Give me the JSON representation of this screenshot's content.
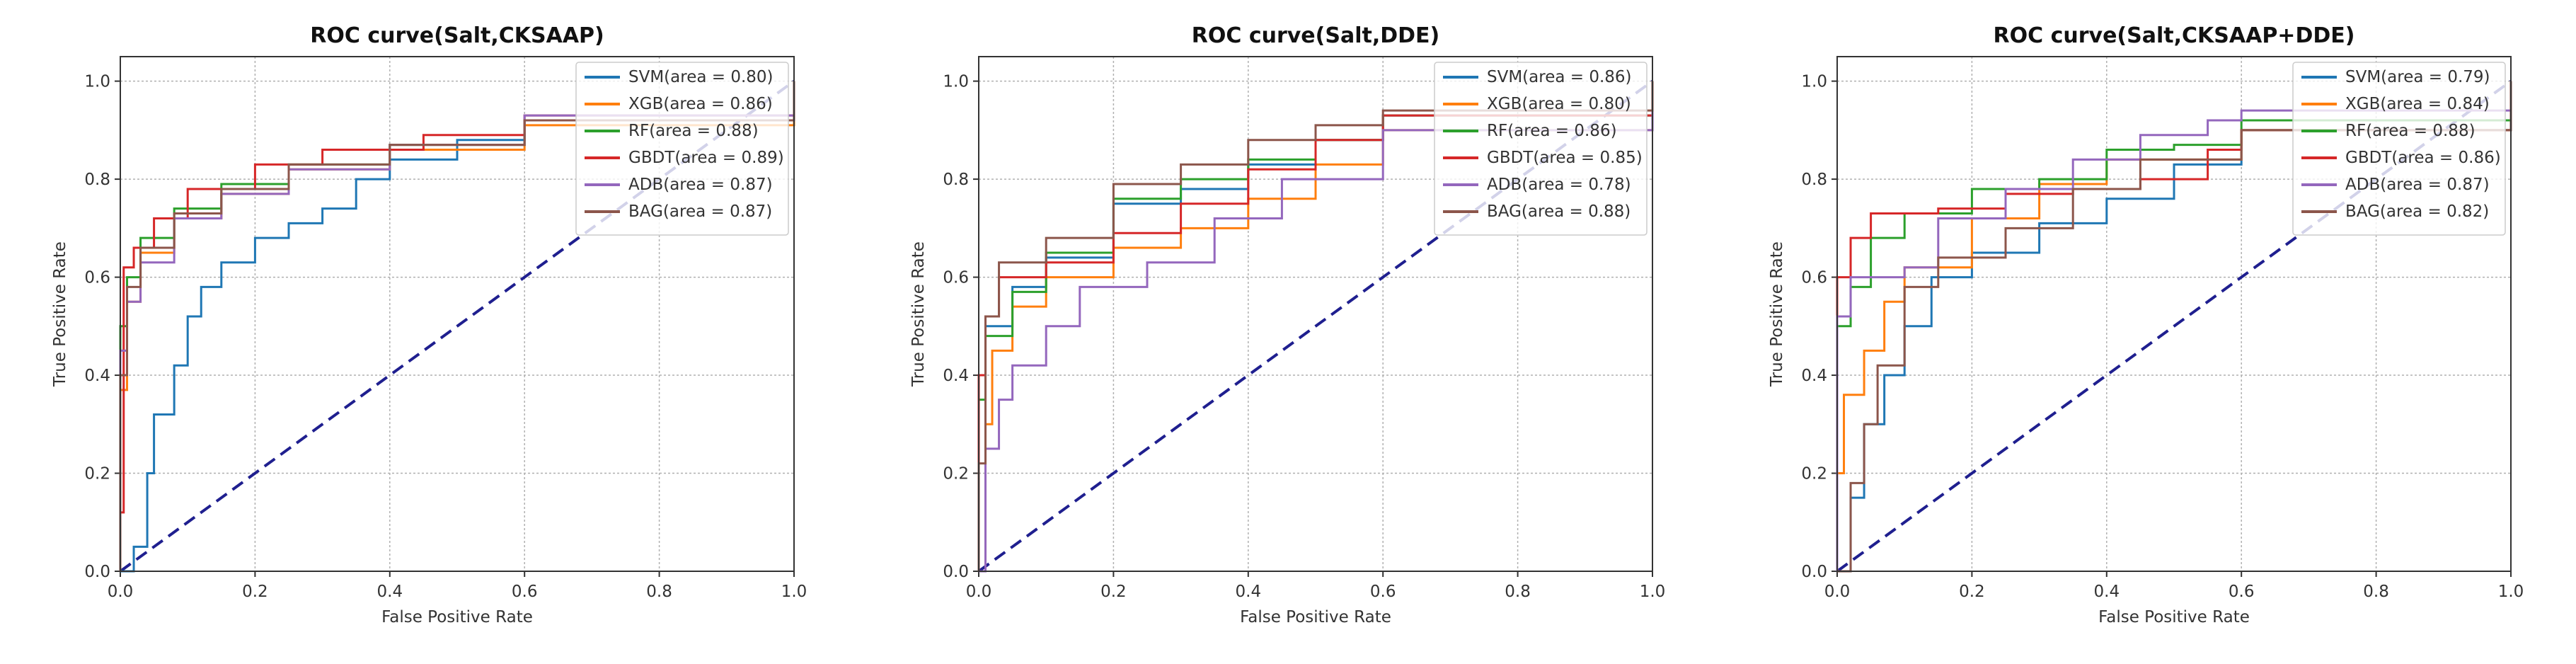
{
  "chart_data": [
    {
      "type": "line",
      "title": "ROC curve(Salt,CKSAAP)",
      "xlabel": "False Positive Rate",
      "ylabel": "True Positive Rate",
      "xlim": [
        0.0,
        1.0
      ],
      "ylim": [
        0.0,
        1.05
      ],
      "xticks": [
        "0.0",
        "0.2",
        "0.4",
        "0.6",
        "0.8",
        "1.0"
      ],
      "yticks": [
        "0.0",
        "0.2",
        "0.4",
        "0.6",
        "0.8",
        "1.0"
      ],
      "grid": true,
      "legend_position": "upper right",
      "reference_line": {
        "style": "dashed",
        "color": "#1f1f8f",
        "from": [
          0,
          0
        ],
        "to": [
          1,
          1
        ]
      },
      "curve_points_are_approximate": true,
      "series": [
        {
          "name": "SVM",
          "auc": 0.8,
          "label": "SVM(area = 0.80)",
          "color": "#1f77b4",
          "points": [
            [
              0,
              0
            ],
            [
              0.02,
              0.05
            ],
            [
              0.04,
              0.2
            ],
            [
              0.05,
              0.32
            ],
            [
              0.08,
              0.42
            ],
            [
              0.1,
              0.52
            ],
            [
              0.12,
              0.58
            ],
            [
              0.15,
              0.63
            ],
            [
              0.2,
              0.68
            ],
            [
              0.25,
              0.71
            ],
            [
              0.3,
              0.74
            ],
            [
              0.35,
              0.8
            ],
            [
              0.4,
              0.84
            ],
            [
              0.5,
              0.88
            ],
            [
              0.6,
              0.92
            ],
            [
              1,
              1
            ]
          ]
        },
        {
          "name": "XGB",
          "auc": 0.86,
          "label": "XGB(area = 0.86)",
          "color": "#ff7f0e",
          "points": [
            [
              0,
              0
            ],
            [
              0,
              0.37
            ],
            [
              0.01,
              0.55
            ],
            [
              0.03,
              0.65
            ],
            [
              0.08,
              0.72
            ],
            [
              0.15,
              0.77
            ],
            [
              0.25,
              0.82
            ],
            [
              0.4,
              0.86
            ],
            [
              0.6,
              0.91
            ],
            [
              1,
              1
            ]
          ]
        },
        {
          "name": "RF",
          "auc": 0.88,
          "label": "RF(area = 0.88)",
          "color": "#2ca02c",
          "points": [
            [
              0,
              0
            ],
            [
              0,
              0.5
            ],
            [
              0.01,
              0.6
            ],
            [
              0.03,
              0.68
            ],
            [
              0.08,
              0.74
            ],
            [
              0.15,
              0.79
            ],
            [
              0.25,
              0.83
            ],
            [
              0.4,
              0.87
            ],
            [
              0.6,
              0.92
            ],
            [
              1,
              1
            ]
          ]
        },
        {
          "name": "GBDT",
          "auc": 0.89,
          "label": "GBDT(area = 0.89)",
          "color": "#d62728",
          "points": [
            [
              0,
              0
            ],
            [
              0,
              0.12
            ],
            [
              0.005,
              0.62
            ],
            [
              0.02,
              0.66
            ],
            [
              0.05,
              0.72
            ],
            [
              0.1,
              0.78
            ],
            [
              0.2,
              0.83
            ],
            [
              0.3,
              0.86
            ],
            [
              0.45,
              0.89
            ],
            [
              0.6,
              0.93
            ],
            [
              1,
              1
            ]
          ]
        },
        {
          "name": "ADB",
          "auc": 0.87,
          "label": "ADB(area = 0.87)",
          "color": "#9467bd",
          "points": [
            [
              0,
              0
            ],
            [
              0,
              0.45
            ],
            [
              0.01,
              0.55
            ],
            [
              0.03,
              0.63
            ],
            [
              0.08,
              0.72
            ],
            [
              0.15,
              0.77
            ],
            [
              0.25,
              0.82
            ],
            [
              0.4,
              0.87
            ],
            [
              0.6,
              0.93
            ],
            [
              1,
              1
            ]
          ]
        },
        {
          "name": "BAG",
          "auc": 0.87,
          "label": "BAG(area = 0.87)",
          "color": "#8c564b",
          "points": [
            [
              0,
              0
            ],
            [
              0,
              0.4
            ],
            [
              0.01,
              0.58
            ],
            [
              0.03,
              0.66
            ],
            [
              0.08,
              0.73
            ],
            [
              0.15,
              0.78
            ],
            [
              0.25,
              0.83
            ],
            [
              0.4,
              0.87
            ],
            [
              0.6,
              0.92
            ],
            [
              1,
              1
            ]
          ]
        }
      ]
    },
    {
      "type": "line",
      "title": "ROC curve(Salt,DDE)",
      "xlabel": "False Positive Rate",
      "ylabel": "True Positive Rate",
      "xlim": [
        0.0,
        1.0
      ],
      "ylim": [
        0.0,
        1.05
      ],
      "xticks": [
        "0.0",
        "0.2",
        "0.4",
        "0.6",
        "0.8",
        "1.0"
      ],
      "yticks": [
        "0.0",
        "0.2",
        "0.4",
        "0.6",
        "0.8",
        "1.0"
      ],
      "grid": true,
      "legend_position": "upper right",
      "reference_line": {
        "style": "dashed",
        "color": "#1f1f8f",
        "from": [
          0,
          0
        ],
        "to": [
          1,
          1
        ]
      },
      "curve_points_are_approximate": true,
      "series": [
        {
          "name": "SVM",
          "auc": 0.86,
          "label": "SVM(area = 0.86)",
          "color": "#1f77b4",
          "points": [
            [
              0,
              0
            ],
            [
              0,
              0.4
            ],
            [
              0.01,
              0.5
            ],
            [
              0.05,
              0.58
            ],
            [
              0.1,
              0.64
            ],
            [
              0.2,
              0.75
            ],
            [
              0.3,
              0.78
            ],
            [
              0.4,
              0.83
            ],
            [
              0.5,
              0.88
            ],
            [
              0.6,
              0.93
            ],
            [
              1,
              1
            ]
          ]
        },
        {
          "name": "XGB",
          "auc": 0.8,
          "label": "XGB(area = 0.80)",
          "color": "#ff7f0e",
          "points": [
            [
              0,
              0
            ],
            [
              0.01,
              0.3
            ],
            [
              0.02,
              0.45
            ],
            [
              0.05,
              0.54
            ],
            [
              0.1,
              0.6
            ],
            [
              0.2,
              0.66
            ],
            [
              0.3,
              0.7
            ],
            [
              0.4,
              0.76
            ],
            [
              0.5,
              0.83
            ],
            [
              0.6,
              0.9
            ],
            [
              1,
              1
            ]
          ]
        },
        {
          "name": "RF",
          "auc": 0.86,
          "label": "RF(area = 0.86)",
          "color": "#2ca02c",
          "points": [
            [
              0,
              0
            ],
            [
              0,
              0.35
            ],
            [
              0.01,
              0.48
            ],
            [
              0.05,
              0.57
            ],
            [
              0.1,
              0.65
            ],
            [
              0.2,
              0.76
            ],
            [
              0.3,
              0.8
            ],
            [
              0.4,
              0.84
            ],
            [
              0.5,
              0.88
            ],
            [
              0.6,
              0.93
            ],
            [
              1,
              1
            ]
          ]
        },
        {
          "name": "GBDT",
          "auc": 0.85,
          "label": "GBDT(area = 0.85)",
          "color": "#d62728",
          "points": [
            [
              0,
              0
            ],
            [
              0,
              0.4
            ],
            [
              0.01,
              0.52
            ],
            [
              0.03,
              0.6
            ],
            [
              0.1,
              0.63
            ],
            [
              0.2,
              0.69
            ],
            [
              0.3,
              0.75
            ],
            [
              0.4,
              0.82
            ],
            [
              0.5,
              0.88
            ],
            [
              0.6,
              0.93
            ],
            [
              1,
              1
            ]
          ]
        },
        {
          "name": "ADB",
          "auc": 0.78,
          "label": "ADB(area = 0.78)",
          "color": "#9467bd",
          "points": [
            [
              0,
              0
            ],
            [
              0.01,
              0.25
            ],
            [
              0.03,
              0.35
            ],
            [
              0.05,
              0.42
            ],
            [
              0.1,
              0.5
            ],
            [
              0.15,
              0.58
            ],
            [
              0.25,
              0.63
            ],
            [
              0.35,
              0.72
            ],
            [
              0.45,
              0.8
            ],
            [
              0.6,
              0.9
            ],
            [
              1,
              1
            ]
          ]
        },
        {
          "name": "BAG",
          "auc": 0.88,
          "label": "BAG(area = 0.88)",
          "color": "#8c564b",
          "points": [
            [
              0,
              0
            ],
            [
              0,
              0.22
            ],
            [
              0.01,
              0.52
            ],
            [
              0.03,
              0.63
            ],
            [
              0.1,
              0.68
            ],
            [
              0.2,
              0.79
            ],
            [
              0.3,
              0.83
            ],
            [
              0.4,
              0.88
            ],
            [
              0.5,
              0.91
            ],
            [
              0.6,
              0.94
            ],
            [
              1,
              1
            ]
          ]
        }
      ]
    },
    {
      "type": "line",
      "title": "ROC curve(Salt,CKSAAP+DDE)",
      "xlabel": "False Positive Rate",
      "ylabel": "True Positive Rate",
      "xlim": [
        0.0,
        1.0
      ],
      "ylim": [
        0.0,
        1.05
      ],
      "xticks": [
        "0.0",
        "0.2",
        "0.4",
        "0.6",
        "0.8",
        "1.0"
      ],
      "yticks": [
        "0.0",
        "0.2",
        "0.4",
        "0.6",
        "0.8",
        "1.0"
      ],
      "grid": true,
      "legend_position": "upper right",
      "reference_line": {
        "style": "dashed",
        "color": "#1f1f8f",
        "from": [
          0,
          0
        ],
        "to": [
          1,
          1
        ]
      },
      "curve_points_are_approximate": true,
      "series": [
        {
          "name": "SVM",
          "auc": 0.79,
          "label": "SVM(area = 0.79)",
          "color": "#1f77b4",
          "points": [
            [
              0,
              0
            ],
            [
              0.02,
              0.15
            ],
            [
              0.04,
              0.3
            ],
            [
              0.07,
              0.4
            ],
            [
              0.1,
              0.5
            ],
            [
              0.14,
              0.6
            ],
            [
              0.2,
              0.65
            ],
            [
              0.3,
              0.71
            ],
            [
              0.4,
              0.76
            ],
            [
              0.5,
              0.83
            ],
            [
              0.6,
              0.9
            ],
            [
              1,
              1
            ]
          ]
        },
        {
          "name": "XGB",
          "auc": 0.84,
          "label": "XGB(area = 0.84)",
          "color": "#ff7f0e",
          "points": [
            [
              0,
              0
            ],
            [
              0,
              0.2
            ],
            [
              0.01,
              0.36
            ],
            [
              0.04,
              0.45
            ],
            [
              0.07,
              0.55
            ],
            [
              0.1,
              0.62
            ],
            [
              0.2,
              0.72
            ],
            [
              0.3,
              0.79
            ],
            [
              0.4,
              0.84
            ],
            [
              0.6,
              0.9
            ],
            [
              1,
              1
            ]
          ]
        },
        {
          "name": "RF",
          "auc": 0.88,
          "label": "RF(area = 0.88)",
          "color": "#2ca02c",
          "points": [
            [
              0,
              0
            ],
            [
              0,
              0.5
            ],
            [
              0.02,
              0.58
            ],
            [
              0.05,
              0.68
            ],
            [
              0.1,
              0.73
            ],
            [
              0.2,
              0.78
            ],
            [
              0.3,
              0.8
            ],
            [
              0.4,
              0.86
            ],
            [
              0.5,
              0.87
            ],
            [
              0.6,
              0.92
            ],
            [
              1,
              1
            ]
          ]
        },
        {
          "name": "GBDT",
          "auc": 0.86,
          "label": "GBDT(area = 0.86)",
          "color": "#d62728",
          "points": [
            [
              0,
              0
            ],
            [
              0,
              0.6
            ],
            [
              0.02,
              0.68
            ],
            [
              0.05,
              0.73
            ],
            [
              0.15,
              0.74
            ],
            [
              0.25,
              0.77
            ],
            [
              0.35,
              0.78
            ],
            [
              0.45,
              0.8
            ],
            [
              0.55,
              0.86
            ],
            [
              0.6,
              0.9
            ],
            [
              1,
              1
            ]
          ]
        },
        {
          "name": "ADB",
          "auc": 0.87,
          "label": "ADB(area = 0.87)",
          "color": "#9467bd",
          "points": [
            [
              0,
              0
            ],
            [
              0,
              0.52
            ],
            [
              0.02,
              0.6
            ],
            [
              0.1,
              0.62
            ],
            [
              0.15,
              0.72
            ],
            [
              0.25,
              0.78
            ],
            [
              0.35,
              0.84
            ],
            [
              0.45,
              0.89
            ],
            [
              0.55,
              0.92
            ],
            [
              0.6,
              0.94
            ],
            [
              1,
              1
            ]
          ]
        },
        {
          "name": "BAG",
          "auc": 0.82,
          "label": "BAG(area = 0.82)",
          "color": "#8c564b",
          "points": [
            [
              0,
              0
            ],
            [
              0.02,
              0.18
            ],
            [
              0.04,
              0.3
            ],
            [
              0.06,
              0.42
            ],
            [
              0.1,
              0.58
            ],
            [
              0.15,
              0.64
            ],
            [
              0.25,
              0.7
            ],
            [
              0.35,
              0.78
            ],
            [
              0.45,
              0.84
            ],
            [
              0.6,
              0.9
            ],
            [
              1,
              1
            ]
          ]
        }
      ]
    }
  ]
}
